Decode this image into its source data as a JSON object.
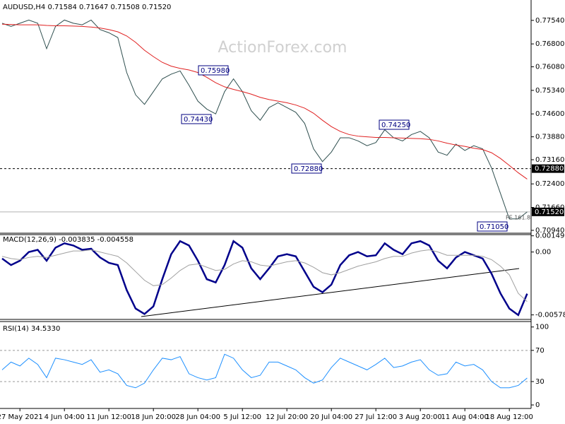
{
  "chart_data": [
    {
      "type": "line",
      "title": "AUDUSD,H4  0.71584 0.71647 0.71508 0.71520",
      "watermark": "ActionForex.com",
      "categories": [
        null,
        null,
        "27 May 2021",
        null,
        null,
        null,
        null,
        "4 Jun 04:00",
        null,
        null,
        null,
        null,
        "11 Jun 12:00",
        null,
        null,
        null,
        null,
        "18 Jun 20:00",
        null,
        null,
        null,
        null,
        "28 Jun 04:00",
        null,
        null,
        null,
        null,
        "5 Jul 12:00",
        null,
        null,
        null,
        null,
        "12 Jul 20:00",
        null,
        null,
        null,
        null,
        "20 Jul 04:00",
        null,
        null,
        null,
        null,
        "27 Jul 12:00",
        null,
        null,
        null,
        null,
        "3 Aug 20:00",
        null,
        null,
        null,
        null,
        "11 Aug 04:00",
        null,
        null,
        null,
        null,
        "18 Aug 12:00",
        null,
        null
      ],
      "series": [
        {
          "name": "AUDUSD",
          "color": "#2f4f4f",
          "values": [
            0.7745,
            0.7735,
            0.7745,
            0.7755,
            0.7745,
            0.7665,
            0.7735,
            0.7755,
            0.7745,
            0.774,
            0.7755,
            0.7725,
            0.7715,
            0.77,
            0.759,
            0.752,
            0.749,
            0.753,
            0.757,
            0.7585,
            0.7595,
            0.755,
            0.75,
            0.7475,
            0.746,
            0.753,
            0.757,
            0.753,
            0.747,
            0.744,
            0.748,
            0.7495,
            0.748,
            0.7465,
            0.743,
            0.735,
            0.731,
            0.734,
            0.7385,
            0.7385,
            0.7375,
            0.736,
            0.737,
            0.741,
            0.7385,
            0.7375,
            0.7395,
            0.7405,
            0.7385,
            0.734,
            0.733,
            0.7365,
            0.7345,
            0.736,
            0.735,
            0.729,
            0.721,
            0.713,
            0.713,
            0.7152
          ]
        },
        {
          "name": "MA",
          "color": "#e02020",
          "values": [
            0.7742,
            0.7741,
            0.774,
            0.774,
            0.774,
            0.7738,
            0.7737,
            0.7737,
            0.7736,
            0.7735,
            0.7733,
            0.773,
            0.7725,
            0.7718,
            0.7705,
            0.7685,
            0.766,
            0.764,
            0.7622,
            0.761,
            0.7603,
            0.7598,
            0.759,
            0.7575,
            0.7558,
            0.7545,
            0.7537,
            0.753,
            0.7522,
            0.7512,
            0.7505,
            0.75,
            0.7495,
            0.7488,
            0.7478,
            0.7462,
            0.744,
            0.742,
            0.7405,
            0.7395,
            0.739,
            0.7388,
            0.7386,
            0.7386,
            0.7385,
            0.7384,
            0.7383,
            0.7382,
            0.738,
            0.7375,
            0.7368,
            0.7362,
            0.7358,
            0.7352,
            0.7348,
            0.7338,
            0.732,
            0.7298,
            0.7275,
            0.7255
          ]
        }
      ],
      "ylim": [
        0.7085,
        0.7818
      ],
      "yticks": [
        {
          "value": 0.7754,
          "label": "0.77540"
        },
        {
          "value": 0.768,
          "label": "0.76800"
        },
        {
          "value": 0.7608,
          "label": "0.76080"
        },
        {
          "value": 0.7534,
          "label": "0.75340"
        },
        {
          "value": 0.746,
          "label": "0.74600"
        },
        {
          "value": 0.7388,
          "label": "0.73880"
        },
        {
          "value": 0.7316,
          "label": "0.73160"
        },
        {
          "value": 0.724,
          "label": "0.72400"
        },
        {
          "value": 0.7166,
          "label": "0.71660"
        },
        {
          "value": 0.7094,
          "label": "0.70940"
        }
      ],
      "hlines": [
        {
          "value": 0.7288,
          "label": "0.72880",
          "style": "dashed"
        },
        {
          "value": 0.7152,
          "label": "0.71520",
          "style": "solid"
        }
      ],
      "annotations": [
        {
          "value": 0.7598,
          "label": "0.75980"
        },
        {
          "value": 0.7443,
          "label": "0.74430"
        },
        {
          "value": 0.7288,
          "label": "0.72880"
        },
        {
          "value": 0.7425,
          "label": "0.74250"
        },
        {
          "value": 0.7105,
          "label": "0.71050"
        }
      ],
      "fib_label": "FE 161.8"
    },
    {
      "type": "line",
      "title": "MACD(12,26,9) -0.003835 -0.004558",
      "series": [
        {
          "name": "MACD",
          "color": "#00008b",
          "values": [
            -0.0006,
            -0.0012,
            -0.0008,
            0.0,
            0.0002,
            -0.0008,
            0.0004,
            0.0008,
            0.0006,
            0.0002,
            0.0003,
            -0.0005,
            -0.001,
            -0.0012,
            -0.0035,
            -0.0052,
            -0.0057,
            -0.005,
            -0.0025,
            -0.0002,
            0.001,
            0.0006,
            -0.0008,
            -0.0025,
            -0.0028,
            -0.0012,
            0.001,
            0.0004,
            -0.0015,
            -0.0025,
            -0.0015,
            -0.0004,
            -0.0002,
            -0.0004,
            -0.0018,
            -0.0032,
            -0.0037,
            -0.003,
            -0.0012,
            -0.0003,
            0.0,
            -0.0004,
            -0.0003,
            0.0008,
            0.0002,
            -0.0002,
            0.0008,
            0.001,
            0.0006,
            -0.0008,
            -0.0015,
            -0.0005,
            0.0,
            -0.0003,
            -0.0006,
            -0.002,
            -0.0038,
            -0.0052,
            -0.0058,
            -0.003835
          ]
        },
        {
          "name": "Signal",
          "color": "#a0a0a0",
          "values": [
            -0.0004,
            -0.0006,
            -0.0007,
            -0.0005,
            -0.0004,
            -0.0005,
            -0.0003,
            -0.0001,
            0.0001,
            0.0001,
            0.0002,
            0.0,
            -0.0002,
            -0.0004,
            -0.001,
            -0.0018,
            -0.0026,
            -0.0031,
            -0.003,
            -0.0024,
            -0.0017,
            -0.0012,
            -0.0011,
            -0.0014,
            -0.0017,
            -0.0016,
            -0.0011,
            -0.0008,
            -0.0009,
            -0.0012,
            -0.0013,
            -0.0011,
            -0.0009,
            -0.0008,
            -0.001,
            -0.0014,
            -0.0019,
            -0.0021,
            -0.0019,
            -0.0016,
            -0.0013,
            -0.0011,
            -0.0009,
            -0.0006,
            -0.0004,
            -0.0004,
            -0.0001,
            0.0001,
            0.0002,
            0.0,
            -0.0003,
            -0.0003,
            -0.0003,
            -0.0003,
            -0.0004,
            -0.0007,
            -0.0013,
            -0.0021,
            -0.0038,
            -0.004558
          ]
        }
      ],
      "ylim": [
        -0.0062,
        0.0016
      ],
      "yticks": [
        0.001492,
        {
          "value": 0,
          "label": "0.00"
        },
        -0.005784
      ]
    },
    {
      "type": "line",
      "title": "RSI(14) 34.5330",
      "series": [
        {
          "name": "RSI",
          "color": "#1e90ff",
          "values": [
            45,
            55,
            50,
            60,
            52,
            35,
            60,
            58,
            55,
            52,
            58,
            42,
            45,
            40,
            25,
            22,
            28,
            45,
            60,
            58,
            62,
            40,
            35,
            32,
            35,
            65,
            60,
            45,
            35,
            38,
            55,
            55,
            50,
            45,
            35,
            28,
            32,
            48,
            60,
            55,
            50,
            45,
            52,
            60,
            48,
            50,
            55,
            58,
            45,
            38,
            40,
            55,
            50,
            52,
            45,
            30,
            22,
            22,
            25,
            34.533
          ]
        }
      ],
      "ylim": [
        -4.5,
        107
      ],
      "yticks": [
        100,
        70,
        30,
        0
      ]
    }
  ]
}
